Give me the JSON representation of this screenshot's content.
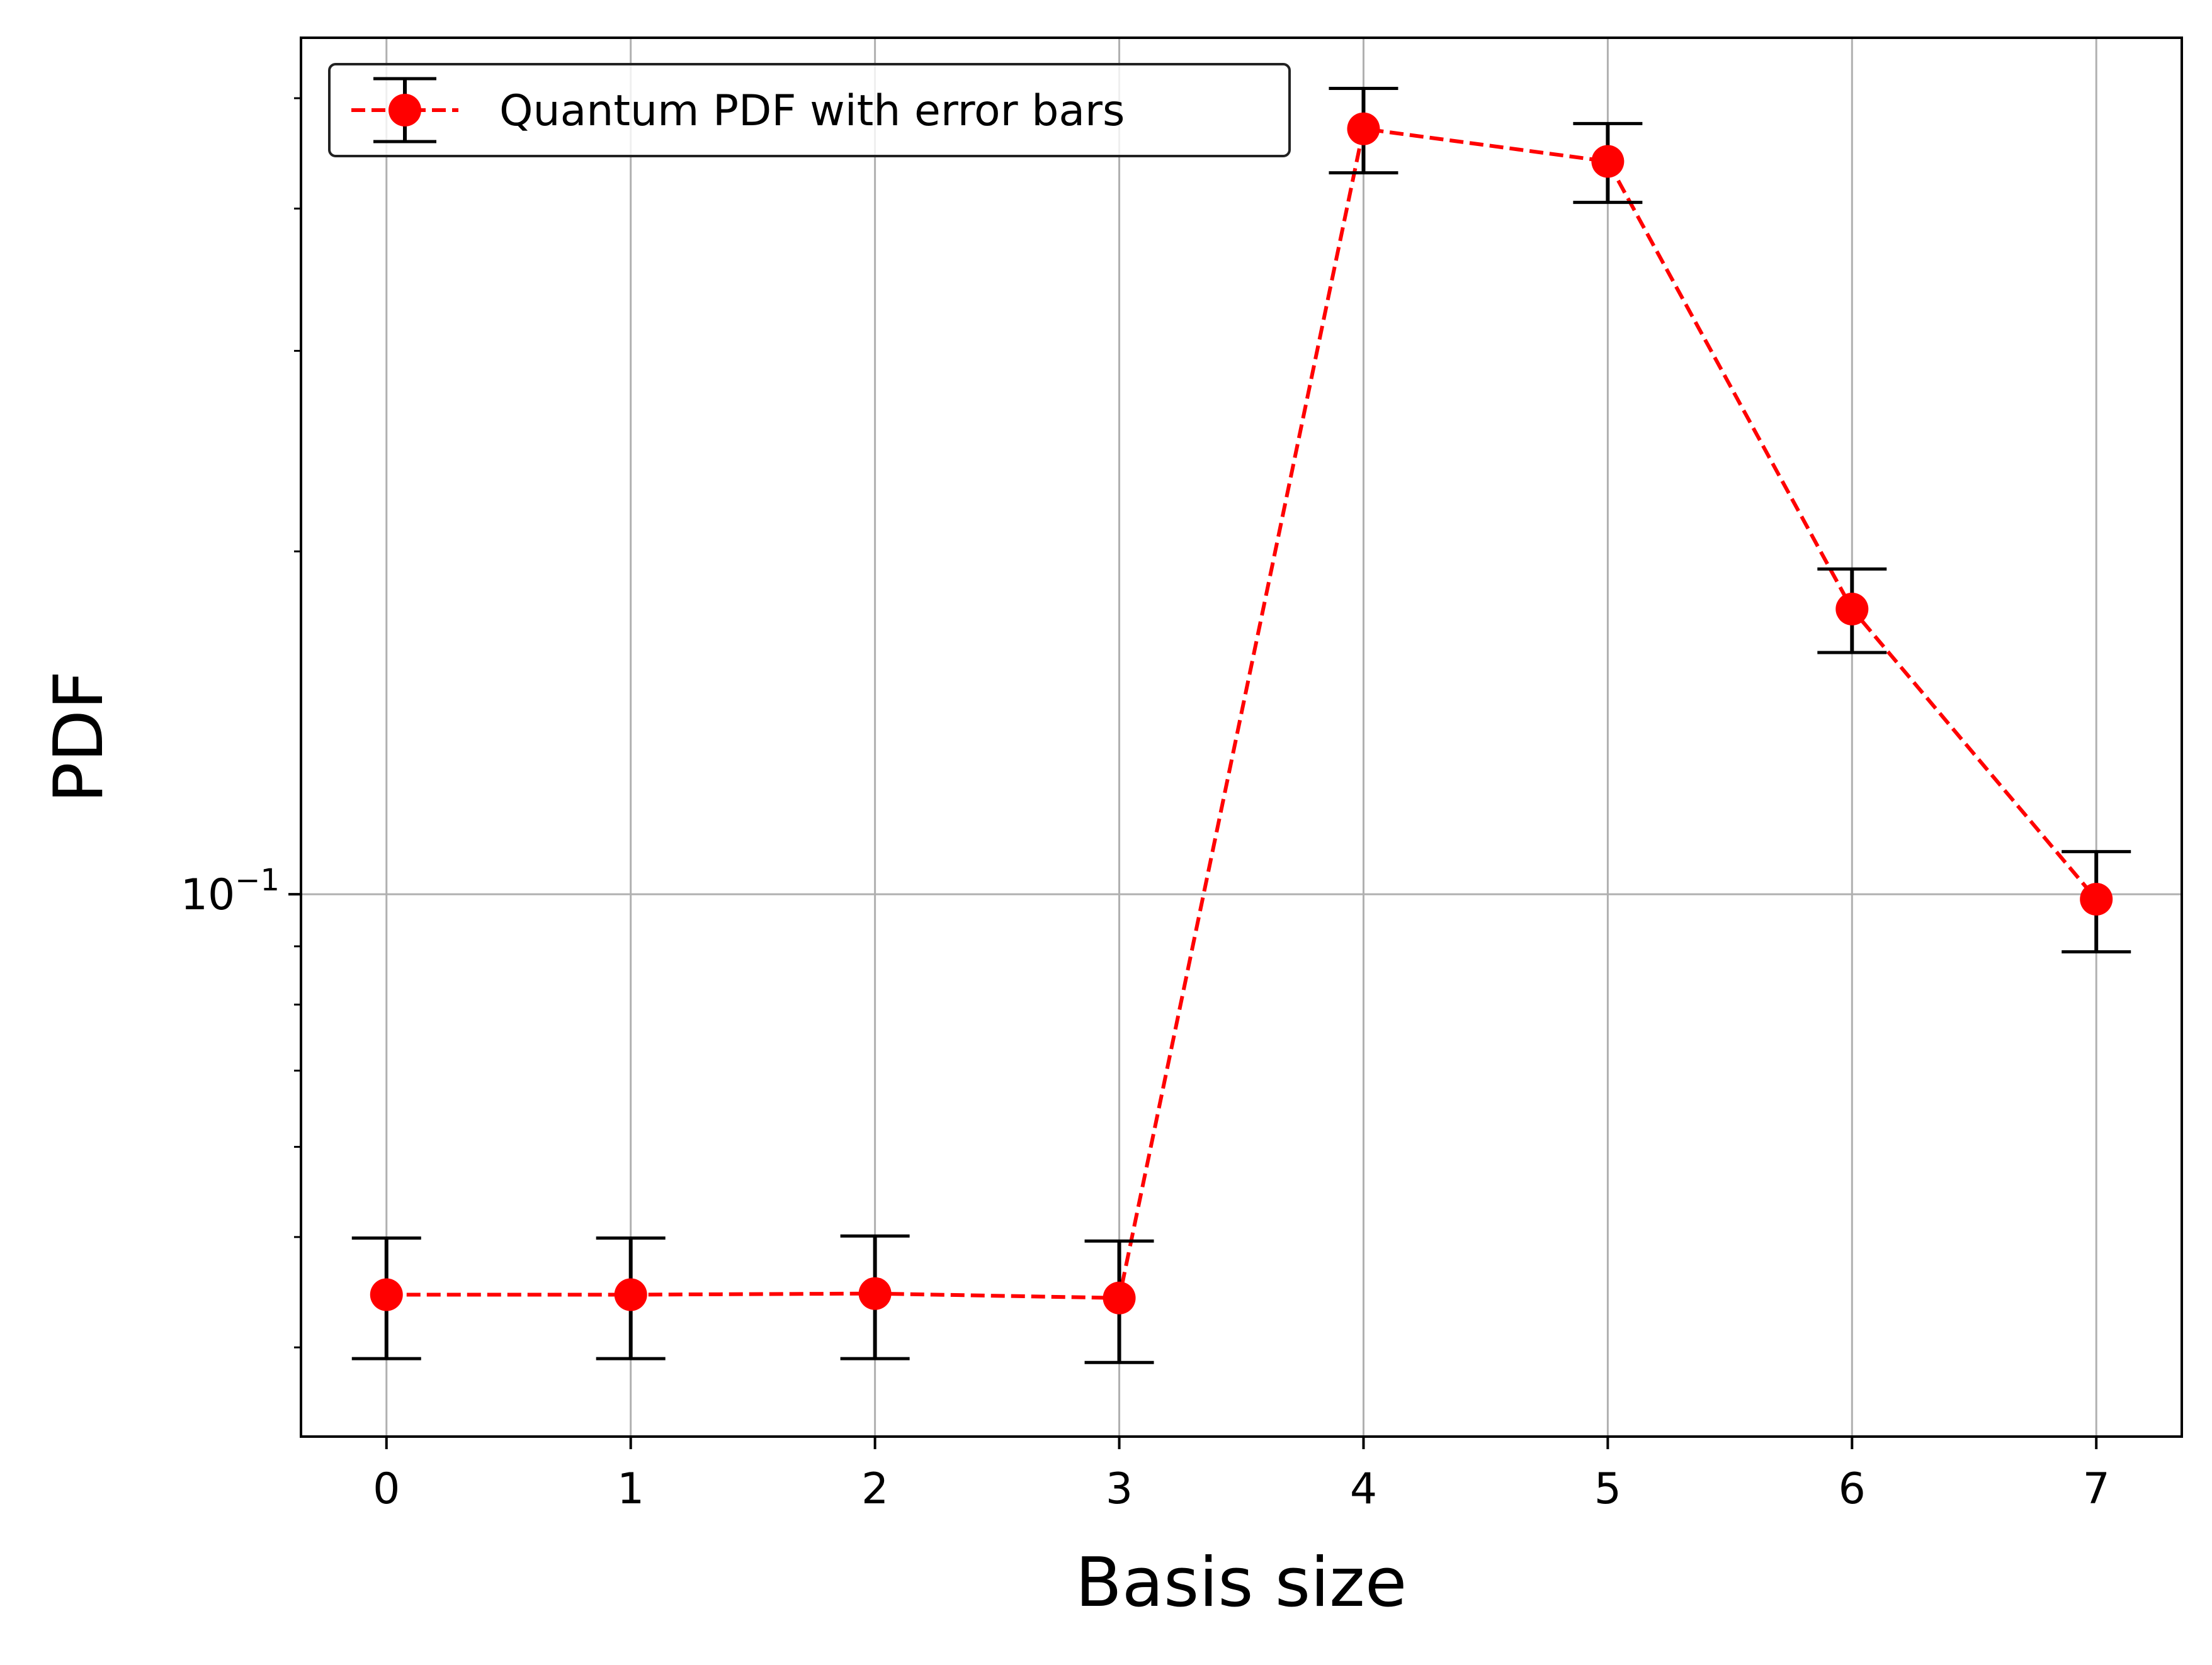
{
  "chart_data": {
    "type": "line",
    "title": "",
    "xlabel": "Basis size",
    "ylabel": "PDF",
    "yscale": "log",
    "xlim": [
      -0.35,
      7.35
    ],
    "ylim": [
      0.0334,
      0.565
    ],
    "x_ticks": [
      0,
      1,
      2,
      3,
      4,
      5,
      6,
      7
    ],
    "x_tick_labels": [
      "0",
      "1",
      "2",
      "3",
      "4",
      "5",
      "6",
      "7"
    ],
    "y_major_ticks": [
      0.1
    ],
    "y_major_tick_labels": [
      {
        "base": "10",
        "exp": "−1"
      }
    ],
    "y_minor_ticks": [
      0.04,
      0.05,
      0.06,
      0.07,
      0.08,
      0.09,
      0.2,
      0.3,
      0.4,
      0.5
    ],
    "grid": true,
    "legend": {
      "position": "top-left",
      "entries": [
        "Quantum PDF with error bars"
      ]
    },
    "series": [
      {
        "name": "Quantum PDF with error bars",
        "color": "#ff0000",
        "line_style": "dashed",
        "marker": "circle",
        "error_bar_color": "#000000",
        "x": [
          0,
          1,
          2,
          3,
          4,
          5,
          6,
          7
        ],
        "y": [
          0.0445,
          0.0445,
          0.0446,
          0.0442,
          0.47,
          0.44,
          0.178,
          0.099
        ],
        "yerr": [
          0.0054,
          0.0054,
          0.0055,
          0.0054,
          0.04,
          0.035,
          0.015,
          0.01
        ]
      }
    ]
  }
}
